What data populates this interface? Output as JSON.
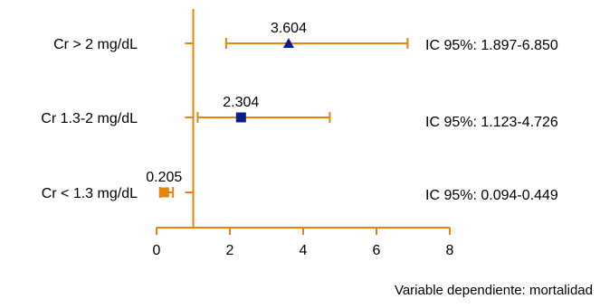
{
  "chart_data": {
    "type": "forest",
    "xlim": [
      0,
      8
    ],
    "xticks": [
      "0",
      "2",
      "4",
      "6",
      "8"
    ],
    "reference_line": 1,
    "rows": [
      {
        "label": "Cr > 2 mg/dL",
        "estimate": 3.604,
        "estimate_label": "3.604",
        "ci_low": 1.897,
        "ci_high": 6.85,
        "ci_text": "IC 95%: 1.897-6.850",
        "marker": "triangle",
        "marker_color": "#0b1f8a"
      },
      {
        "label": "Cr 1.3-2 mg/dL",
        "estimate": 2.304,
        "estimate_label": "2.304",
        "ci_low": 1.123,
        "ci_high": 4.726,
        "ci_text": "IC 95%: 1.123-4.726",
        "marker": "square",
        "marker_color": "#0b1f8a"
      },
      {
        "label": "Cr < 1.3 mg/dL",
        "estimate": 0.205,
        "estimate_label": "0.205",
        "ci_low": 0.094,
        "ci_high": 0.449,
        "ci_text": "IC 95%: 0.094-0.449",
        "marker": "square",
        "marker_color": "#e8820c"
      }
    ],
    "line_color": "#e8820c"
  },
  "footnote": "Variable dependiente: mortalidad"
}
